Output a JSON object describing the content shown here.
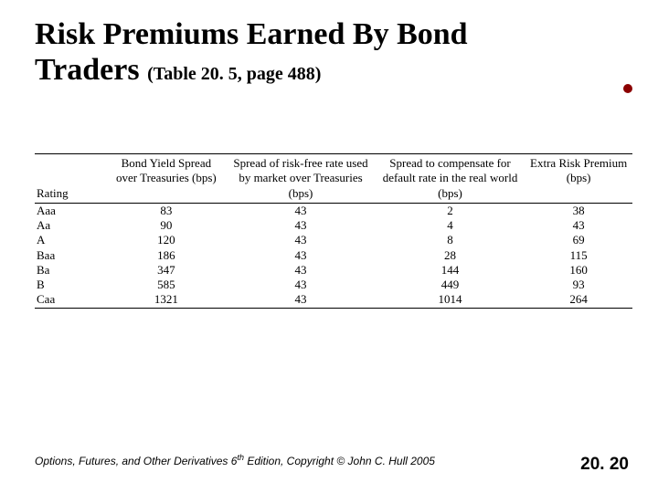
{
  "title_line1": "Risk Premiums Earned By Bond",
  "title_line2_main": "Traders",
  "title_line2_sub": "(Table 20. 5, page 488)",
  "table": {
    "columns": [
      "Rating",
      "Bond Yield Spread over Treasuries (bps)",
      "Spread of risk-free rate used by market over Treasuries (bps)",
      "Spread to compensate for default rate in the real world (bps)",
      "Extra Risk Premium (bps)"
    ],
    "rows": [
      [
        "Aaa",
        "83",
        "43",
        "2",
        "38"
      ],
      [
        "Aa",
        "90",
        "43",
        "4",
        "43"
      ],
      [
        "A",
        "120",
        "43",
        "8",
        "69"
      ],
      [
        "Baa",
        "186",
        "43",
        "28",
        "115"
      ],
      [
        "Ba",
        "347",
        "43",
        "144",
        "160"
      ],
      [
        "B",
        "585",
        "43",
        "449",
        "93"
      ],
      [
        "Caa",
        "1321",
        "43",
        "1014",
        "264"
      ]
    ],
    "col_widths_pct": [
      12,
      20,
      25,
      25,
      18
    ]
  },
  "footer": {
    "book_part1": "Options, Futures, and Other Derivatives",
    "edition_num": "6",
    "edition_suffix": "th",
    "book_part2": " Edition, Copyright © John C. Hull 2005",
    "slide_number": "20. 20"
  },
  "colors": {
    "bg": "#ffffff",
    "text": "#000000",
    "dot": "#8b0000"
  }
}
